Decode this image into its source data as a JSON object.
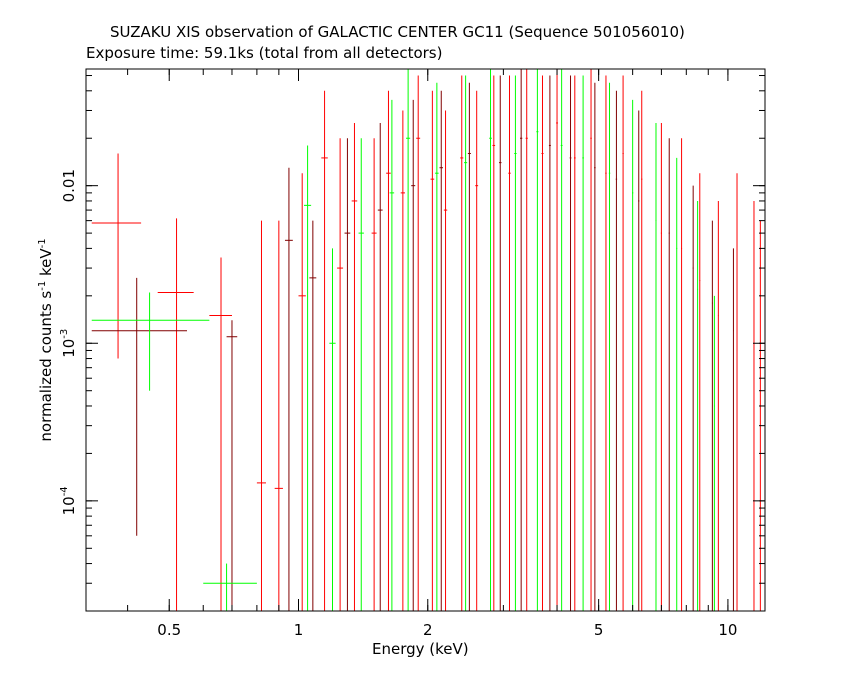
{
  "chart_data": {
    "type": "scatter",
    "title": "SUZAKU XIS observation of GALACTIC CENTER GC11 (Sequence 501056010)",
    "subtitle": "Exposure time: 59.1ks (total from all detectors)",
    "xlabel": "Energy (keV)",
    "ylabel": {
      "prefix": "normalized counts s",
      "exp1": "-1",
      "mid": " keV",
      "exp2": "-1"
    },
    "x_scale": "log",
    "y_scale": "log",
    "xlim": [
      0.32,
      12.2
    ],
    "ylim": [
      2e-05,
      0.055
    ],
    "x_ticks": [
      {
        "value": 0.5,
        "label": "0.5"
      },
      {
        "value": 1,
        "label": "1"
      },
      {
        "value": 2,
        "label": "2"
      },
      {
        "value": 5,
        "label": "5"
      },
      {
        "value": 10,
        "label": "10"
      }
    ],
    "y_ticks": [
      {
        "value": 0.0001,
        "label": "10",
        "exp": "-4"
      },
      {
        "value": 0.001,
        "label": "10",
        "exp": "-3"
      },
      {
        "value": 0.01,
        "label": "0.01",
        "exp": ""
      }
    ],
    "series": [
      {
        "color": "#ff0000",
        "points": [
          {
            "x": 0.38,
            "xlo": 0.33,
            "xhi": 0.43,
            "y": 0.0058,
            "ylo": 0.0008,
            "yhi": 0.016
          },
          {
            "x": 0.52,
            "xlo": 0.47,
            "xhi": 0.57,
            "y": 0.0021,
            "ylo": 2e-05,
            "yhi": 0.0062
          },
          {
            "x": 0.66,
            "xlo": 0.62,
            "xhi": 0.7,
            "y": 0.0015,
            "ylo": 2e-05,
            "yhi": 0.0035
          },
          {
            "x": 0.82,
            "xlo": 0.8,
            "xhi": 0.84,
            "y": 0.00013,
            "ylo": 2e-05,
            "yhi": 0.006
          },
          {
            "x": 0.9,
            "xlo": 0.88,
            "xhi": 0.92,
            "y": 0.00012,
            "ylo": 2e-05,
            "yhi": 0.006
          },
          {
            "x": 1.02,
            "xlo": 1.0,
            "xhi": 1.04,
            "y": 0.002,
            "ylo": 2e-05,
            "yhi": 0.012
          },
          {
            "x": 1.15,
            "xlo": 1.13,
            "xhi": 1.17,
            "y": 0.015,
            "ylo": 2e-05,
            "yhi": 0.04
          },
          {
            "x": 1.25,
            "xlo": 1.23,
            "xhi": 1.27,
            "y": 0.003,
            "ylo": 2e-05,
            "yhi": 0.02
          },
          {
            "x": 1.35,
            "xlo": 1.33,
            "xhi": 1.37,
            "y": 0.008,
            "ylo": 2e-05,
            "yhi": 0.025
          },
          {
            "x": 1.5,
            "xlo": 1.48,
            "xhi": 1.52,
            "y": 0.005,
            "ylo": 2e-05,
            "yhi": 0.02
          },
          {
            "x": 1.62,
            "xlo": 1.6,
            "xhi": 1.64,
            "y": 0.012,
            "ylo": 2e-05,
            "yhi": 0.04
          },
          {
            "x": 1.75,
            "xlo": 1.73,
            "xhi": 1.77,
            "y": 0.009,
            "ylo": 2e-05,
            "yhi": 0.03
          },
          {
            "x": 1.9,
            "xlo": 1.88,
            "xhi": 1.92,
            "y": 0.02,
            "ylo": 2e-05,
            "yhi": 0.05
          },
          {
            "x": 2.05,
            "xlo": 2.03,
            "xhi": 2.07,
            "y": 0.011,
            "ylo": 2e-05,
            "yhi": 0.04
          },
          {
            "x": 2.2,
            "xlo": 2.18,
            "xhi": 2.22,
            "y": 0.007,
            "ylo": 2e-05,
            "yhi": 0.03
          },
          {
            "x": 2.4,
            "xlo": 2.38,
            "xhi": 2.42,
            "y": 0.015,
            "ylo": 2e-05,
            "yhi": 0.05
          },
          {
            "x": 2.6,
            "xlo": 2.58,
            "xhi": 2.62,
            "y": 0.01,
            "ylo": 2e-05,
            "yhi": 0.04
          },
          {
            "x": 2.85,
            "xlo": 2.83,
            "xhi": 2.87,
            "y": 0.018,
            "ylo": 2e-05,
            "yhi": 0.05
          },
          {
            "x": 3.1,
            "xlo": 3.08,
            "xhi": 3.12,
            "y": 0.012,
            "ylo": 2e-05,
            "yhi": 0.05
          },
          {
            "x": 3.4,
            "xlo": 3.38,
            "xhi": 3.42,
            "y": 0.02,
            "ylo": 2e-05,
            "yhi": 0.055
          },
          {
            "x": 3.7,
            "xlo": 3.68,
            "xhi": 3.72,
            "y": 0.016,
            "ylo": 2e-05,
            "yhi": 0.05
          },
          {
            "x": 4.0,
            "xlo": 3.98,
            "xhi": 4.02,
            "y": 0.025,
            "ylo": 2e-05,
            "yhi": 0.055
          },
          {
            "x": 4.4,
            "xlo": 4.38,
            "xhi": 4.42,
            "y": 0.015,
            "ylo": 2e-05,
            "yhi": 0.05
          },
          {
            "x": 4.8,
            "xlo": 4.78,
            "xhi": 4.82,
            "y": 0.02,
            "ylo": 2e-05,
            "yhi": 0.055
          },
          {
            "x": 5.2,
            "xlo": 5.18,
            "xhi": 5.22,
            "y": 0.012,
            "ylo": 2e-05,
            "yhi": 0.05
          },
          {
            "x": 5.7,
            "xlo": 5.68,
            "xhi": 5.72,
            "y": 0.016,
            "ylo": 2e-05,
            "yhi": 0.05
          },
          {
            "x": 6.3,
            "xlo": 6.28,
            "xhi": 6.32,
            "y": 0.011,
            "ylo": 2e-05,
            "yhi": 0.04
          },
          {
            "x": 7.0,
            "xlo": 6.98,
            "xhi": 7.02,
            "y": 0.005,
            "ylo": 2e-05,
            "yhi": 0.025
          },
          {
            "x": 7.8,
            "xlo": 7.78,
            "xhi": 7.82,
            "y": 0.004,
            "ylo": 2e-05,
            "yhi": 0.02
          },
          {
            "x": 8.6,
            "xlo": 8.58,
            "xhi": 8.62,
            "y": 0.0025,
            "ylo": 2e-05,
            "yhi": 0.012
          },
          {
            "x": 9.5,
            "xlo": 9.48,
            "xhi": 9.52,
            "y": 0.0015,
            "ylo": 2e-05,
            "yhi": 0.008
          },
          {
            "x": 10.5,
            "xlo": 10.48,
            "xhi": 10.52,
            "y": 0.0009,
            "ylo": 2e-05,
            "yhi": 0.012
          },
          {
            "x": 11.5,
            "xlo": 11.48,
            "xhi": 11.52,
            "y": 0.0006,
            "ylo": 2e-05,
            "yhi": 0.008
          },
          {
            "x": 11.9,
            "xlo": 11.88,
            "xhi": 11.92,
            "y": 0.002,
            "ylo": 2e-05,
            "yhi": 0.006
          }
        ]
      },
      {
        "color": "#800000",
        "points": [
          {
            "x": 0.42,
            "xlo": 0.33,
            "xhi": 0.55,
            "y": 0.0012,
            "ylo": 6e-05,
            "yhi": 0.0026
          },
          {
            "x": 0.7,
            "xlo": 0.68,
            "xhi": 0.72,
            "y": 0.0011,
            "ylo": 2e-05,
            "yhi": 0.0014
          },
          {
            "x": 0.95,
            "xlo": 0.93,
            "xhi": 0.97,
            "y": 0.0045,
            "ylo": 2e-05,
            "yhi": 0.013
          },
          {
            "x": 1.08,
            "xlo": 1.06,
            "xhi": 1.1,
            "y": 0.0026,
            "ylo": 2e-05,
            "yhi": 0.006
          },
          {
            "x": 1.3,
            "xlo": 1.28,
            "xhi": 1.32,
            "y": 0.005,
            "ylo": 2e-05,
            "yhi": 0.02
          },
          {
            "x": 1.55,
            "xlo": 1.53,
            "xhi": 1.57,
            "y": 0.007,
            "ylo": 2e-05,
            "yhi": 0.025
          },
          {
            "x": 1.85,
            "xlo": 1.83,
            "xhi": 1.87,
            "y": 0.01,
            "ylo": 2e-05,
            "yhi": 0.035
          },
          {
            "x": 2.15,
            "xlo": 2.13,
            "xhi": 2.17,
            "y": 0.013,
            "ylo": 2e-05,
            "yhi": 0.04
          },
          {
            "x": 2.5,
            "xlo": 2.48,
            "xhi": 2.52,
            "y": 0.016,
            "ylo": 2e-05,
            "yhi": 0.045
          },
          {
            "x": 2.95,
            "xlo": 2.93,
            "xhi": 2.97,
            "y": 0.014,
            "ylo": 2e-05,
            "yhi": 0.05
          },
          {
            "x": 3.3,
            "xlo": 3.28,
            "xhi": 3.32,
            "y": 0.02,
            "ylo": 2e-05,
            "yhi": 0.055
          },
          {
            "x": 3.85,
            "xlo": 3.83,
            "xhi": 3.87,
            "y": 0.018,
            "ylo": 2e-05,
            "yhi": 0.05
          },
          {
            "x": 4.3,
            "xlo": 4.28,
            "xhi": 4.32,
            "y": 0.015,
            "ylo": 2e-05,
            "yhi": 0.05
          },
          {
            "x": 4.9,
            "xlo": 4.88,
            "xhi": 4.92,
            "y": 0.013,
            "ylo": 2e-05,
            "yhi": 0.045
          },
          {
            "x": 5.5,
            "xlo": 5.48,
            "xhi": 5.52,
            "y": 0.011,
            "ylo": 2e-05,
            "yhi": 0.04
          },
          {
            "x": 6.2,
            "xlo": 6.18,
            "xhi": 6.22,
            "y": 0.008,
            "ylo": 2e-05,
            "yhi": 0.03
          },
          {
            "x": 7.3,
            "xlo": 7.28,
            "xhi": 7.32,
            "y": 0.005,
            "ylo": 2e-05,
            "yhi": 0.02
          },
          {
            "x": 8.3,
            "xlo": 8.28,
            "xhi": 8.32,
            "y": 0.003,
            "ylo": 2e-05,
            "yhi": 0.01
          },
          {
            "x": 9.2,
            "xlo": 9.18,
            "xhi": 9.22,
            "y": 0.0018,
            "ylo": 2e-05,
            "yhi": 0.006
          },
          {
            "x": 10.3,
            "xlo": 10.28,
            "xhi": 10.32,
            "y": 0.0012,
            "ylo": 2e-05,
            "yhi": 0.004
          }
        ]
      },
      {
        "color": "#00ff00",
        "points": [
          {
            "x": 0.45,
            "xlo": 0.33,
            "xhi": 0.62,
            "y": 0.0014,
            "ylo": 0.0005,
            "yhi": 0.0021
          },
          {
            "x": 0.68,
            "xlo": 0.6,
            "xhi": 0.8,
            "y": 3e-05,
            "ylo": 2e-05,
            "yhi": 4e-05
          },
          {
            "x": 1.05,
            "xlo": 1.03,
            "xhi": 1.07,
            "y": 0.0075,
            "ylo": 2e-05,
            "yhi": 0.018
          },
          {
            "x": 1.2,
            "xlo": 1.18,
            "xhi": 1.22,
            "y": 0.001,
            "ylo": 2e-05,
            "yhi": 0.004
          },
          {
            "x": 1.4,
            "xlo": 1.38,
            "xhi": 1.42,
            "y": 0.005,
            "ylo": 2e-05,
            "yhi": 0.02
          },
          {
            "x": 1.65,
            "xlo": 1.63,
            "xhi": 1.67,
            "y": 0.009,
            "ylo": 2e-05,
            "yhi": 0.035
          },
          {
            "x": 1.8,
            "xlo": 1.78,
            "xhi": 1.82,
            "y": 0.02,
            "ylo": 2e-05,
            "yhi": 0.055
          },
          {
            "x": 2.1,
            "xlo": 2.08,
            "xhi": 2.12,
            "y": 0.012,
            "ylo": 2e-05,
            "yhi": 0.045
          },
          {
            "x": 2.45,
            "xlo": 2.43,
            "xhi": 2.47,
            "y": 0.014,
            "ylo": 2e-05,
            "yhi": 0.05
          },
          {
            "x": 2.8,
            "xlo": 2.78,
            "xhi": 2.82,
            "y": 0.02,
            "ylo": 2e-05,
            "yhi": 0.055
          },
          {
            "x": 3.2,
            "xlo": 3.18,
            "xhi": 3.22,
            "y": 0.016,
            "ylo": 2e-05,
            "yhi": 0.05
          },
          {
            "x": 3.6,
            "xlo": 3.58,
            "xhi": 3.62,
            "y": 0.022,
            "ylo": 2e-05,
            "yhi": 0.055
          },
          {
            "x": 4.1,
            "xlo": 4.08,
            "xhi": 4.12,
            "y": 0.018,
            "ylo": 2e-05,
            "yhi": 0.055
          },
          {
            "x": 4.6,
            "xlo": 4.58,
            "xhi": 4.62,
            "y": 0.015,
            "ylo": 2e-05,
            "yhi": 0.05
          },
          {
            "x": 5.3,
            "xlo": 5.28,
            "xhi": 5.32,
            "y": 0.012,
            "ylo": 2e-05,
            "yhi": 0.045
          },
          {
            "x": 6.0,
            "xlo": 5.98,
            "xhi": 6.02,
            "y": 0.009,
            "ylo": 2e-05,
            "yhi": 0.035
          },
          {
            "x": 6.8,
            "xlo": 6.78,
            "xhi": 6.82,
            "y": 0.006,
            "ylo": 2e-05,
            "yhi": 0.025
          },
          {
            "x": 7.6,
            "xlo": 7.58,
            "xhi": 7.62,
            "y": 0.004,
            "ylo": 2e-05,
            "yhi": 0.015
          },
          {
            "x": 8.5,
            "xlo": 8.48,
            "xhi": 8.52,
            "y": 0.0022,
            "ylo": 2e-05,
            "yhi": 0.008
          },
          {
            "x": 9.3,
            "xlo": 9.28,
            "xhi": 9.32,
            "y": 0.0004,
            "ylo": 2e-05,
            "yhi": 0.002
          }
        ]
      }
    ]
  }
}
